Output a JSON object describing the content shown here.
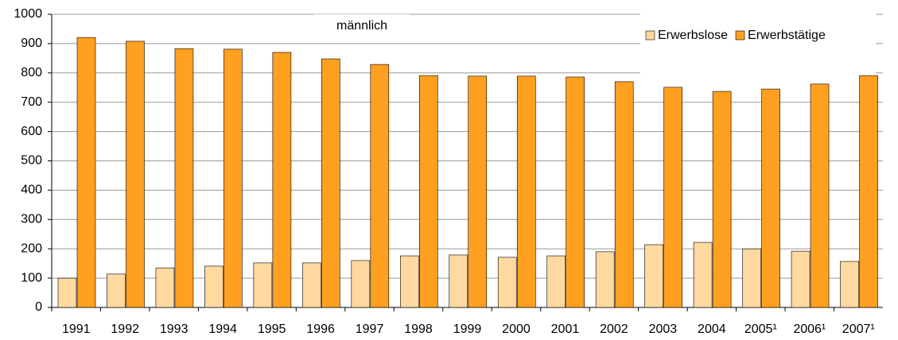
{
  "chart_data": {
    "type": "bar",
    "annotation": "männlich",
    "categories": [
      "1991",
      "1992",
      "1993",
      "1994",
      "1995",
      "1996",
      "1997",
      "1998",
      "1999",
      "2000",
      "2001",
      "2002",
      "2003",
      "2004",
      "2005¹",
      "2006¹",
      "2007¹"
    ],
    "series": [
      {
        "name": "Erwerbslose",
        "color": "#ffd9a0",
        "values": [
          100,
          114,
          135,
          141,
          152,
          152,
          160,
          176,
          179,
          171,
          176,
          190,
          214,
          222,
          200,
          192,
          157
        ]
      },
      {
        "name": "Erwerbstätige",
        "color": "#ffa020",
        "values": [
          921,
          908,
          883,
          881,
          870,
          848,
          829,
          791,
          789,
          789,
          786,
          770,
          751,
          737,
          745,
          762,
          791
        ]
      }
    ],
    "ylim": [
      0,
      1000
    ],
    "yticks": [
      0,
      100,
      200,
      300,
      400,
      500,
      600,
      700,
      800,
      900,
      1000
    ],
    "grid": true,
    "legend": "top-right"
  }
}
